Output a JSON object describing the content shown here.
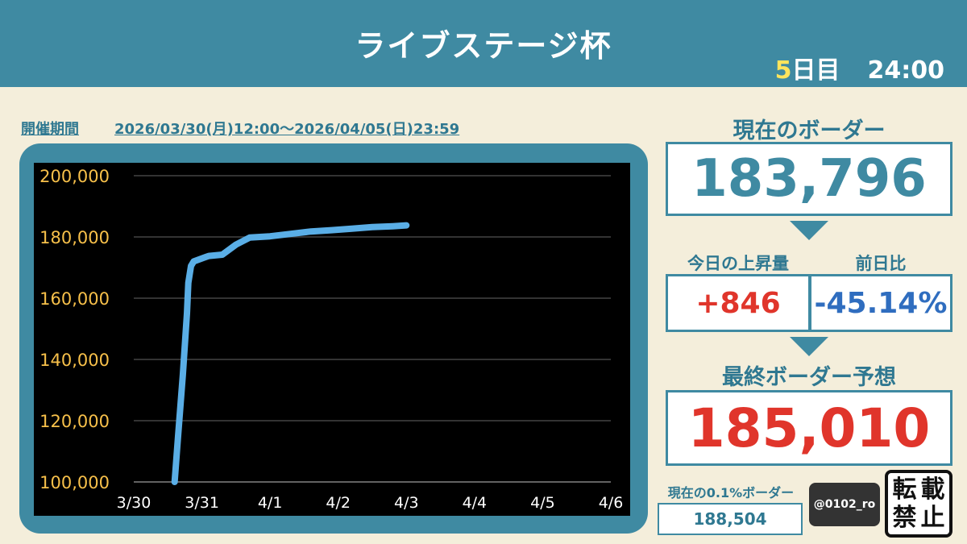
{
  "header": {
    "title": "ライブステージ杯",
    "day_number": "5",
    "day_suffix": "日目",
    "time": "24:00"
  },
  "period": {
    "label": "開催期間",
    "range": "2026/03/30(月)12:00～2026/04/05(日)23:59"
  },
  "current_border": {
    "label": "現在のボーダー",
    "value": "183,796"
  },
  "today_rise": {
    "label": "今日の上昇量",
    "value": "+846"
  },
  "prev_day_ratio": {
    "label": "前日比",
    "value": "-45.14%"
  },
  "final_prediction": {
    "label": "最終ボーダー予想",
    "value": "185,010"
  },
  "top_border": {
    "label": "現在の0.1%ボーダー",
    "value": "188,504"
  },
  "handle": "@0102_ro",
  "no_repost": [
    "転",
    "載",
    "禁",
    "止"
  ],
  "colors": {
    "header": "#3f8aa2",
    "background": "#f4eedb",
    "accent_text": "#2f7891",
    "positive": "#e0352b",
    "negative": "#2f6dbf",
    "line": "#5aaee6",
    "ytick": "#f7c04a"
  },
  "chart_data": {
    "type": "line",
    "title": "",
    "xlabel": "",
    "ylabel": "",
    "ylim": [
      100000,
      200000
    ],
    "yticks": [
      "200,000",
      "180,000",
      "160,000",
      "140,000",
      "120,000",
      "100,000"
    ],
    "ytick_values": [
      200000,
      180000,
      160000,
      140000,
      120000,
      100000
    ],
    "xticks": [
      "3/30",
      "3/31",
      "4/1",
      "4/2",
      "4/3",
      "4/4",
      "4/5",
      "4/6"
    ],
    "xlim_days": [
      0,
      7
    ],
    "grid": true,
    "series": [
      {
        "x": [
          0.6,
          0.65,
          0.72,
          0.78,
          0.8,
          0.84,
          0.88,
          0.94,
          1.0,
          1.1,
          1.3,
          1.5,
          1.7,
          2.0,
          2.3,
          2.6,
          2.9,
          3.2,
          3.5,
          3.8,
          4.0
        ],
        "y": [
          100000,
          115000,
          135000,
          155000,
          165000,
          170500,
          172000,
          172500,
          173000,
          173800,
          174200,
          177500,
          179800,
          180200,
          181000,
          181800,
          182200,
          182700,
          183200,
          183500,
          183796
        ]
      }
    ]
  }
}
